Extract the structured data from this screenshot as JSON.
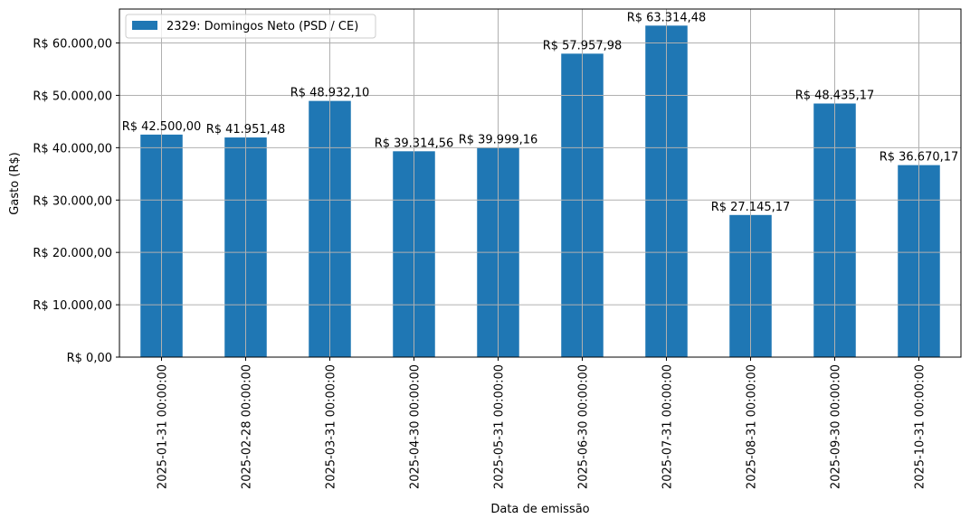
{
  "chart_data": {
    "type": "bar",
    "title": "",
    "xlabel": "Data de emissão",
    "ylabel": "Gasto (R$)",
    "categories": [
      "2025-01-31 00:00:00",
      "2025-02-28 00:00:00",
      "2025-03-31 00:00:00",
      "2025-04-30 00:00:00",
      "2025-05-31 00:00:00",
      "2025-06-30 00:00:00",
      "2025-07-31 00:00:00",
      "2025-08-31 00:00:00",
      "2025-09-30 00:00:00",
      "2025-10-31 00:00:00"
    ],
    "series": [
      {
        "name": "2329: Domingos Neto (PSD / CE)",
        "values": [
          42500.0,
          41951.48,
          48932.1,
          39314.56,
          39999.16,
          57957.98,
          63314.48,
          27145.17,
          48435.17,
          36670.17
        ],
        "color": "#1f77b4"
      }
    ],
    "data_labels": [
      "R$ 42.500,00",
      "R$ 41.951,48",
      "R$ 48.932,10",
      "R$ 39.314,56",
      "R$ 39.999,16",
      "R$ 57.957,98",
      "R$ 63.314,48",
      "R$ 27.145,17",
      "R$ 48.435,17",
      "R$ 36.670,17"
    ],
    "yticks": [
      0,
      10000,
      20000,
      30000,
      40000,
      50000,
      60000
    ],
    "ytick_labels": [
      "R$ 0,00",
      "R$ 10.000,00",
      "R$ 20.000,00",
      "R$ 30.000,00",
      "R$ 40.000,00",
      "R$ 50.000,00",
      "R$ 60.000,00"
    ],
    "ylim": [
      0,
      66480
    ],
    "grid": true,
    "legend": "top-left"
  }
}
